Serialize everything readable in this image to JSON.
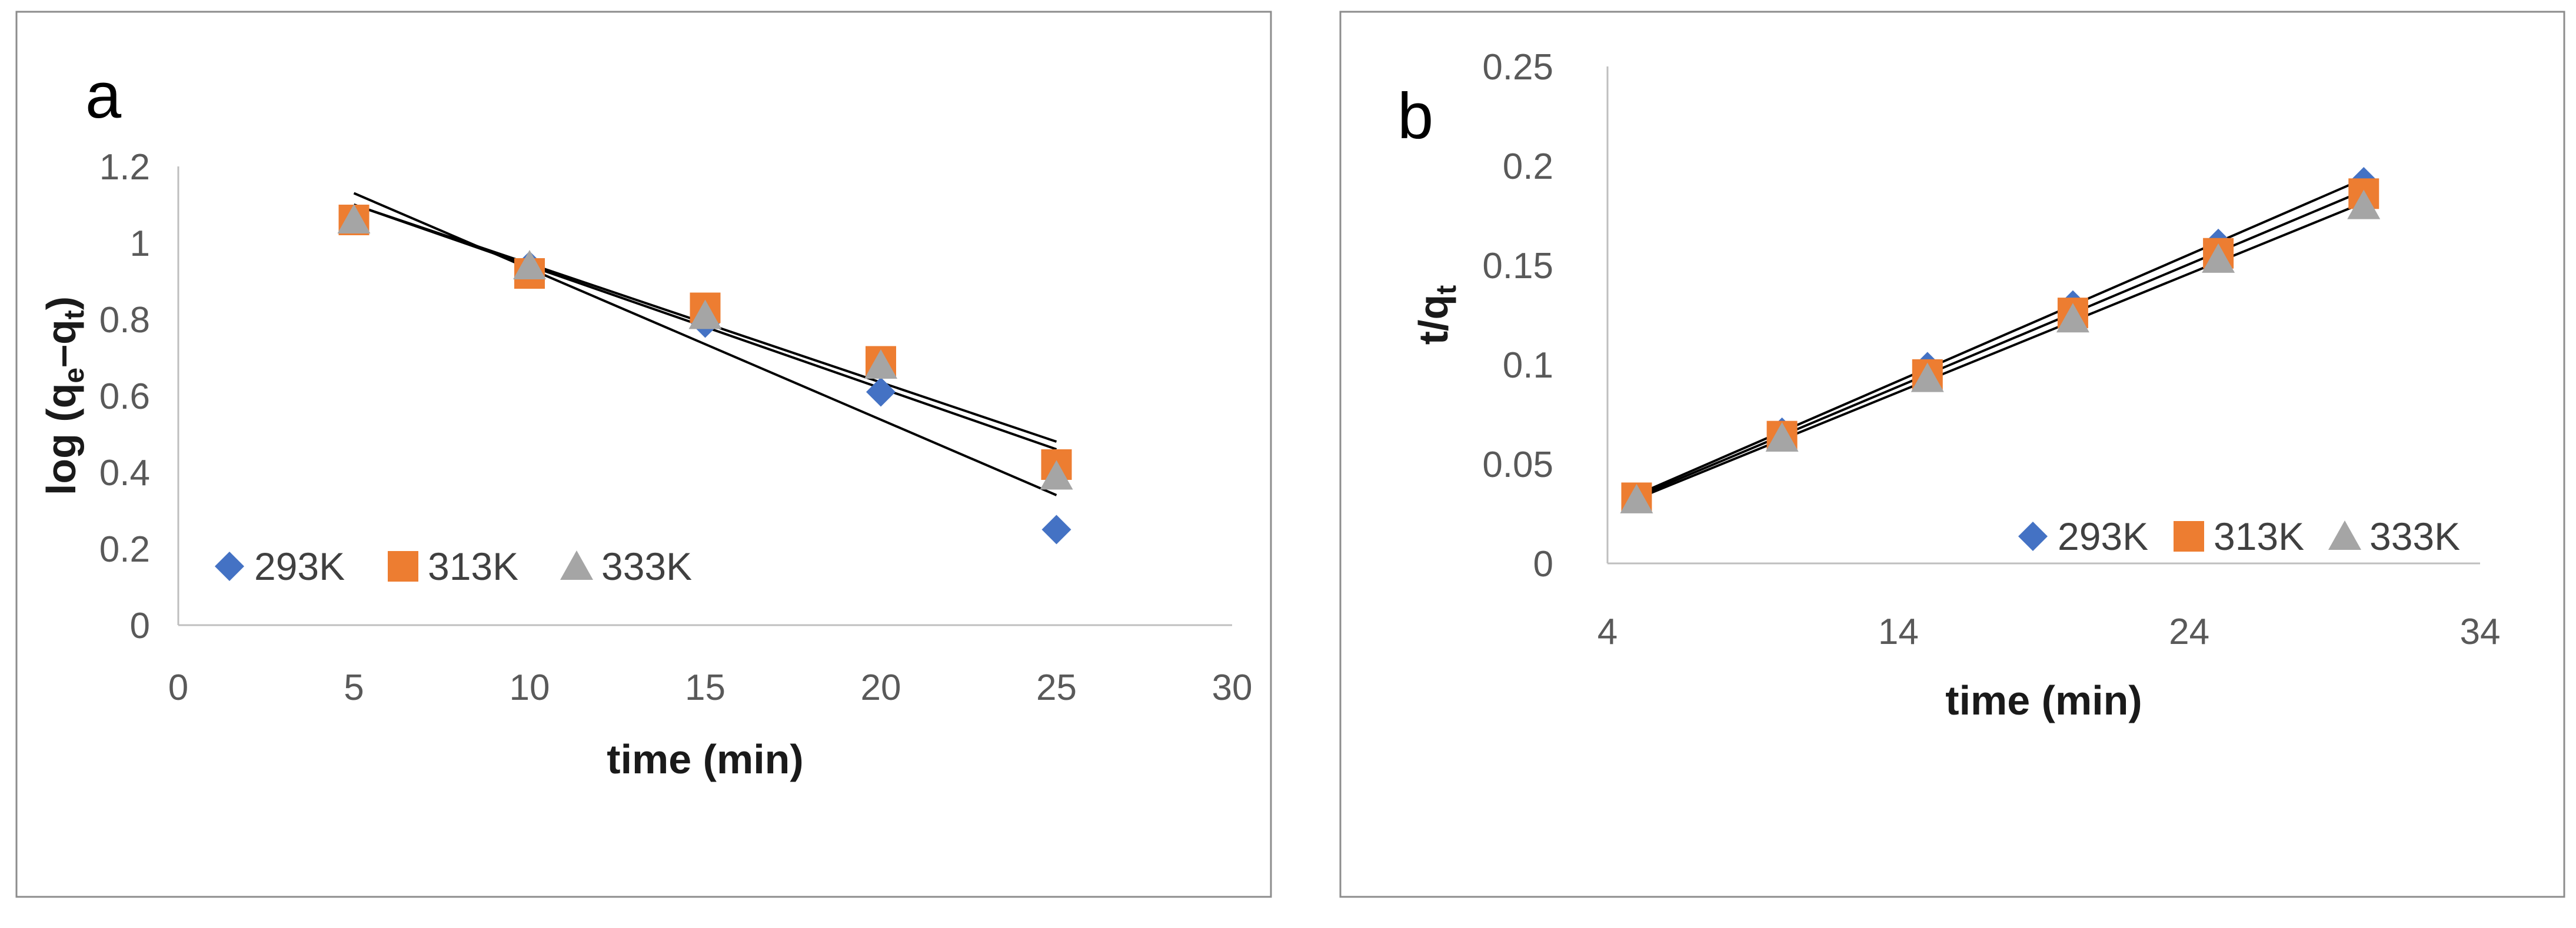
{
  "colors": {
    "s293": "#4472C4",
    "s313": "#ED7D31",
    "s333": "#A5A5A5",
    "trendline": "#000000",
    "axis": "#BFBFBF",
    "frame": "#8C8C8C"
  },
  "chart_data": [
    {
      "type": "scatter",
      "panel_label": "a",
      "title": "",
      "xlabel": "time (min)",
      "ylabel": {
        "base": "log (q",
        "sub1": "e",
        "mid": "–q",
        "sub2": "t",
        "end": ")"
      },
      "xlim": [
        0,
        30
      ],
      "ylim": [
        0,
        1.2
      ],
      "x_ticks": [
        0,
        5,
        10,
        15,
        20,
        25,
        30
      ],
      "x_tick_labels": [
        "0",
        "5",
        "10",
        "15",
        "20",
        "25",
        "30"
      ],
      "y_ticks": [
        0,
        0.2,
        0.4,
        0.6,
        0.8,
        1,
        1.2
      ],
      "y_tick_labels": [
        "0",
        "0.2",
        "0.4",
        "0.6",
        "0.8",
        "1",
        "1.2"
      ],
      "legend_position": "bottom-left",
      "series": [
        {
          "name": "293K",
          "marker": "diamond",
          "color_key": "s293",
          "x": [
            5,
            10,
            15,
            20,
            25
          ],
          "y": [
            1.06,
            0.94,
            0.79,
            0.61,
            0.25
          ],
          "trendline": {
            "x": [
              5,
              25
            ],
            "y": [
              1.13,
              0.34
            ]
          }
        },
        {
          "name": "313K",
          "marker": "square",
          "color_key": "s313",
          "x": [
            5,
            10,
            15,
            20,
            25
          ],
          "y": [
            1.06,
            0.92,
            0.83,
            0.69,
            0.42
          ],
          "trendline": {
            "x": [
              5,
              25
            ],
            "y": [
              1.1,
              0.46
            ]
          }
        },
        {
          "name": "333K",
          "marker": "triangle",
          "color_key": "s333",
          "x": [
            5,
            10,
            15,
            20,
            25
          ],
          "y": [
            1.06,
            0.94,
            0.81,
            0.68,
            0.39
          ],
          "trendline": {
            "x": [
              5,
              25
            ],
            "y": [
              1.1,
              0.48
            ]
          }
        }
      ]
    },
    {
      "type": "scatter",
      "panel_label": "b",
      "title": "",
      "xlabel": "time (min)",
      "ylabel": {
        "base": "t/q",
        "sub1": "t",
        "mid": "",
        "sub2": "",
        "end": ""
      },
      "xlim": [
        4,
        34
      ],
      "ylim": [
        0,
        0.25
      ],
      "x_ticks": [
        4,
        14,
        24,
        34
      ],
      "x_tick_labels": [
        "4",
        "14",
        "24",
        "34"
      ],
      "y_ticks": [
        0,
        0.05,
        0.1,
        0.15,
        0.2,
        0.25
      ],
      "y_tick_labels": [
        "0",
        "0.05",
        "0.1",
        "0.15",
        "0.2",
        "0.25"
      ],
      "legend_position": "bottom-right",
      "series": [
        {
          "name": "293K",
          "marker": "diamond",
          "color_key": "s293",
          "x": [
            5,
            10,
            15,
            20,
            25,
            30
          ],
          "y": [
            0.033,
            0.066,
            0.099,
            0.13,
            0.161,
            0.192
          ],
          "trendline": {
            "x": [
              5,
              30
            ],
            "y": [
              0.0345,
              0.1935
            ]
          }
        },
        {
          "name": "313K",
          "marker": "square",
          "color_key": "s313",
          "x": [
            5,
            10,
            15,
            20,
            25,
            30
          ],
          "y": [
            0.033,
            0.064,
            0.095,
            0.126,
            0.156,
            0.186
          ],
          "trendline": {
            "x": [
              5,
              30
            ],
            "y": [
              0.0335,
              0.1875
            ]
          }
        },
        {
          "name": "333K",
          "marker": "triangle",
          "color_key": "s333",
          "x": [
            5,
            10,
            15,
            20,
            25,
            30
          ],
          "y": [
            0.032,
            0.063,
            0.093,
            0.123,
            0.153,
            0.18
          ],
          "trendline": {
            "x": [
              5,
              30
            ],
            "y": [
              0.0325,
              0.1815
            ]
          }
        }
      ]
    }
  ]
}
